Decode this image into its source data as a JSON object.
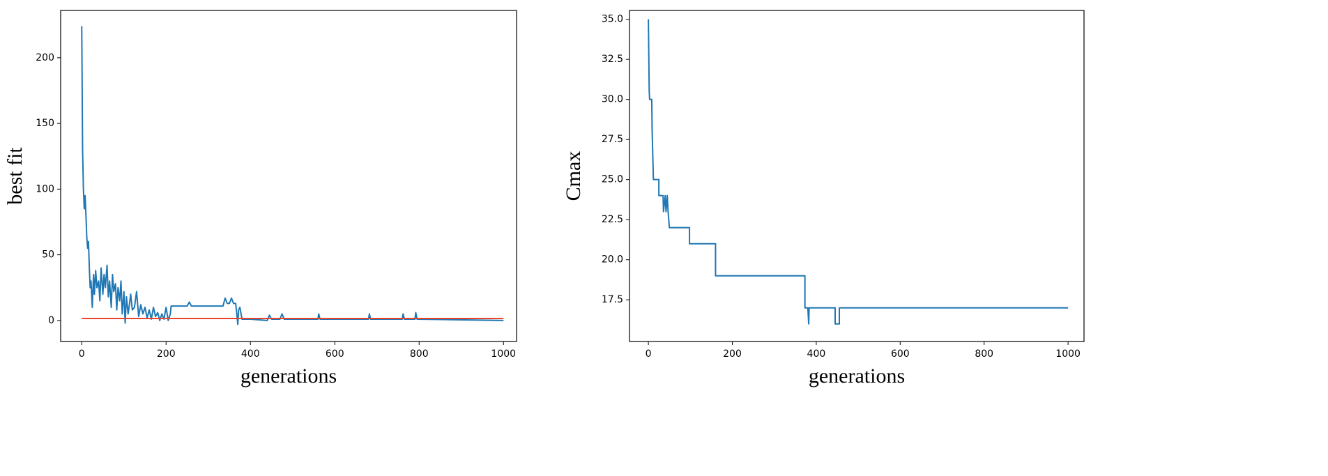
{
  "chart_data": [
    {
      "type": "line",
      "xlabel": "generations",
      "ylabel": "best fit",
      "xlim": [
        -50,
        1031
      ],
      "ylim": [
        -16,
        236
      ],
      "xticks": [
        0,
        200,
        400,
        600,
        800,
        1000
      ],
      "yticks": [
        0,
        50,
        100,
        150,
        200
      ],
      "series": [
        {
          "color": "#1f77b4",
          "x": [
            0,
            2,
            4,
            6,
            8,
            10,
            12,
            14,
            16,
            18,
            20,
            22,
            25,
            28,
            30,
            33,
            36,
            40,
            43,
            46,
            50,
            53,
            56,
            60,
            63,
            66,
            70,
            73,
            76,
            80,
            83,
            86,
            90,
            93,
            96,
            100,
            103,
            106,
            110,
            113,
            116,
            120,
            125,
            130,
            135,
            140,
            145,
            150,
            155,
            160,
            165,
            170,
            175,
            180,
            185,
            190,
            195,
            200,
            205,
            210,
            212,
            215,
            250,
            255,
            260,
            265,
            300,
            320,
            330,
            335,
            340,
            345,
            350,
            355,
            360,
            365,
            368,
            370,
            372,
            375,
            380,
            400,
            440,
            445,
            450,
            470,
            475,
            480,
            560,
            562,
            565,
            680,
            682,
            685,
            760,
            762,
            765,
            790,
            792,
            795,
            1000
          ],
          "values": [
            224,
            130,
            100,
            85,
            95,
            80,
            63,
            55,
            60,
            40,
            25,
            30,
            10,
            35,
            20,
            38,
            25,
            30,
            15,
            40,
            20,
            35,
            25,
            42,
            18,
            30,
            10,
            35,
            22,
            28,
            8,
            25,
            15,
            30,
            5,
            22,
            -2,
            18,
            5,
            12,
            20,
            8,
            10,
            22,
            3,
            12,
            5,
            10,
            2,
            8,
            1,
            10,
            3,
            6,
            0,
            5,
            1,
            10,
            0,
            5,
            11,
            11,
            11,
            14,
            11,
            11,
            11,
            11,
            11,
            11,
            17,
            13,
            13,
            17,
            13,
            13,
            4,
            -3,
            8,
            10,
            1,
            1,
            0,
            4,
            1,
            1,
            5,
            1,
            1,
            5,
            1,
            1,
            5,
            1,
            1,
            5,
            1,
            1,
            6,
            1,
            0
          ]
        },
        {
          "color": "#e8452c",
          "x": [
            0,
            1000
          ],
          "values": [
            1.5,
            1.5
          ]
        }
      ]
    },
    {
      "type": "line",
      "xlabel": "generations",
      "ylabel": "Cmax",
      "xlim": [
        -45,
        1038
      ],
      "ylim": [
        14.9,
        35.55
      ],
      "xticks": [
        0,
        200,
        400,
        600,
        800,
        1000
      ],
      "yticks": [
        17.5,
        {
          "value": 20,
          "label": "20.0"
        },
        22.5,
        {
          "value": 25,
          "label": "25.0"
        },
        27.5,
        {
          "value": 30,
          "label": "30.0"
        },
        32.5,
        {
          "value": 35,
          "label": "35.0"
        }
      ],
      "series": [
        {
          "color": "#1f77b4",
          "x": [
            0,
            2,
            3,
            8,
            9,
            10,
            12,
            25,
            25,
            35,
            36,
            40,
            42,
            45,
            47,
            50,
            98,
            98,
            160,
            160,
            373,
            373,
            380,
            382,
            383,
            445,
            445,
            455,
            455,
            1000
          ],
          "values": [
            35,
            30.5,
            30,
            30,
            28,
            27,
            25,
            25,
            24,
            24,
            23,
            24,
            23,
            24,
            23,
            22,
            22,
            21,
            21,
            19,
            19,
            17,
            17,
            16,
            17,
            17,
            16,
            16,
            17,
            17
          ]
        }
      ]
    }
  ]
}
